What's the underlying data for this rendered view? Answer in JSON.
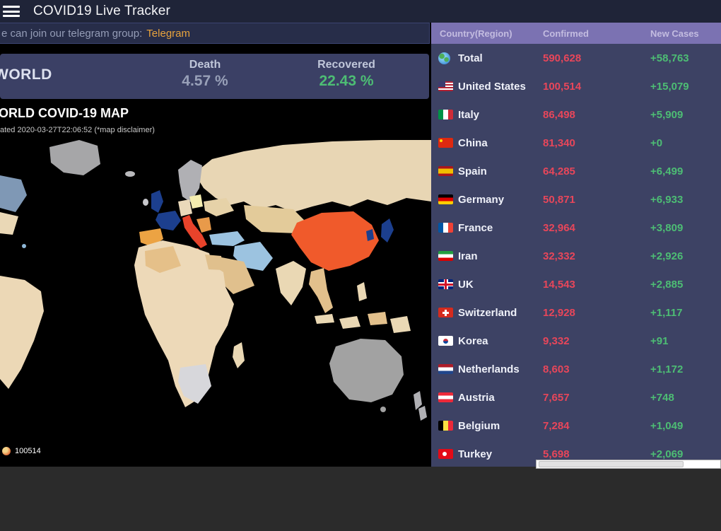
{
  "navbar": {
    "title": "COVID19 Live Tracker"
  },
  "banner": {
    "text": "e can join our telegram group:",
    "link_label": "Telegram"
  },
  "world_card": {
    "title": "WORLD",
    "death_label": "Death",
    "death_value": "4.57 %",
    "recovered_label": "Recovered",
    "recovered_value": "22.43 %"
  },
  "map": {
    "title": "ORLD COVID-19 MAP",
    "subtitle": "ated 2020-03-27T22:06:52 (*map disclaimer)",
    "scale_label": "100514"
  },
  "table": {
    "columns": [
      "Country(Region)",
      "Confirmed",
      "New Cases"
    ],
    "rows": [
      {
        "flag": "globe",
        "country": "Total",
        "confirmed": "590,628",
        "new_cases": "+58,763"
      },
      {
        "flag": "us",
        "country": "United States",
        "confirmed": "100,514",
        "new_cases": "+15,079"
      },
      {
        "flag": "italy",
        "country": "Italy",
        "confirmed": "86,498",
        "new_cases": "+5,909"
      },
      {
        "flag": "china",
        "country": "China",
        "confirmed": "81,340",
        "new_cases": "+0"
      },
      {
        "flag": "spain",
        "country": "Spain",
        "confirmed": "64,285",
        "new_cases": "+6,499"
      },
      {
        "flag": "germany",
        "country": "Germany",
        "confirmed": "50,871",
        "new_cases": "+6,933"
      },
      {
        "flag": "france",
        "country": "France",
        "confirmed": "32,964",
        "new_cases": "+3,809"
      },
      {
        "flag": "iran",
        "country": "Iran",
        "confirmed": "32,332",
        "new_cases": "+2,926"
      },
      {
        "flag": "uk",
        "country": "UK",
        "confirmed": "14,543",
        "new_cases": "+2,885"
      },
      {
        "flag": "switzerland",
        "country": "Switzerland",
        "confirmed": "12,928",
        "new_cases": "+1,117"
      },
      {
        "flag": "korea",
        "country": "Korea",
        "confirmed": "9,332",
        "new_cases": "+91"
      },
      {
        "flag": "netherlands",
        "country": "Netherlands",
        "confirmed": "8,603",
        "new_cases": "+1,172"
      },
      {
        "flag": "austria",
        "country": "Austria",
        "confirmed": "7,657",
        "new_cases": "+748"
      },
      {
        "flag": "belgium",
        "country": "Belgium",
        "confirmed": "7,284",
        "new_cases": "+1,049"
      },
      {
        "flag": "turkey",
        "country": "Turkey",
        "confirmed": "5,698",
        "new_cases": "+2,069"
      }
    ]
  },
  "colors": {
    "confirmed_text": "#e8465a",
    "new_cases_text": "#4dbd74",
    "table_header_bg": "#7b72b2",
    "table_bg": "#3d4264",
    "link_accent": "#e8a33d",
    "map_background": "#000000"
  }
}
